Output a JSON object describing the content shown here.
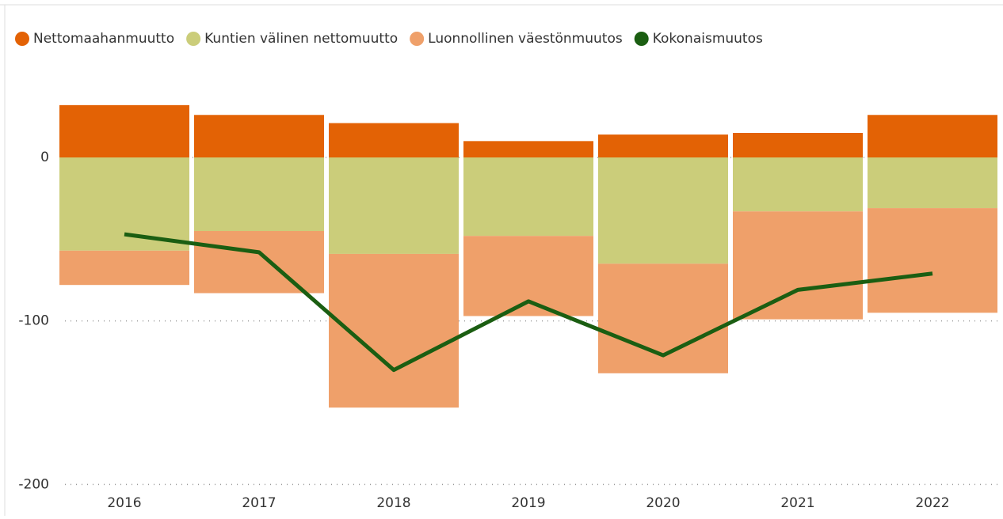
{
  "chart_data": {
    "type": "bar",
    "categories": [
      "2016",
      "2017",
      "2018",
      "2019",
      "2020",
      "2021",
      "2022"
    ],
    "series": [
      {
        "name": "Nettomaahanmuutto",
        "color": "#e36205",
        "values": [
          32,
          26,
          21,
          10,
          14,
          15,
          26
        ]
      },
      {
        "name": "Kuntien välinen nettomuutto",
        "color": "#cbcd7a",
        "values": [
          -57,
          -45,
          -59,
          -48,
          -65,
          -33,
          -31
        ]
      },
      {
        "name": "Luonnollinen väestönmuutos",
        "color": "#efa06a",
        "values": [
          -21,
          -38,
          -94,
          -49,
          -67,
          -66,
          -64
        ]
      },
      {
        "name": "Kokonaismuutos",
        "color": "#1b5e12",
        "type": "line",
        "values": [
          -47,
          -58,
          -130,
          -88,
          -121,
          -81,
          -71
        ]
      }
    ],
    "ylim": [
      -210,
      45
    ],
    "yticks": [
      -200,
      -100,
      0
    ],
    "grid": true
  }
}
